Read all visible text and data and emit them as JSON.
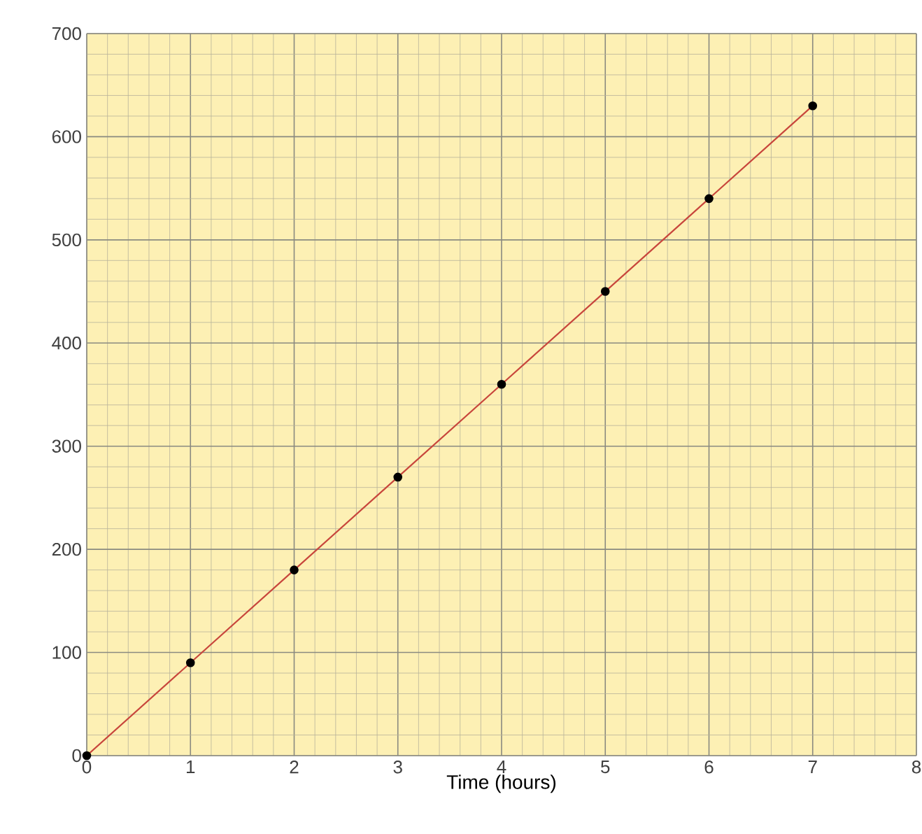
{
  "chart_data": {
    "type": "line",
    "xlabel": "Time (hours)",
    "x": [
      0,
      1,
      2,
      3,
      4,
      5,
      6,
      7
    ],
    "series": [
      {
        "color": "#c8463c",
        "values": [
          0,
          90,
          180,
          270,
          360,
          450,
          540,
          630
        ]
      }
    ],
    "xlim": [
      0,
      8
    ],
    "ylim": [
      0,
      700
    ],
    "xticks": [
      0,
      1,
      2,
      3,
      4,
      5,
      6,
      7,
      8
    ],
    "yticks": [
      0,
      100,
      200,
      300,
      400,
      500,
      600,
      700
    ],
    "grid": true,
    "marker": "circle",
    "line_style": "solid"
  }
}
